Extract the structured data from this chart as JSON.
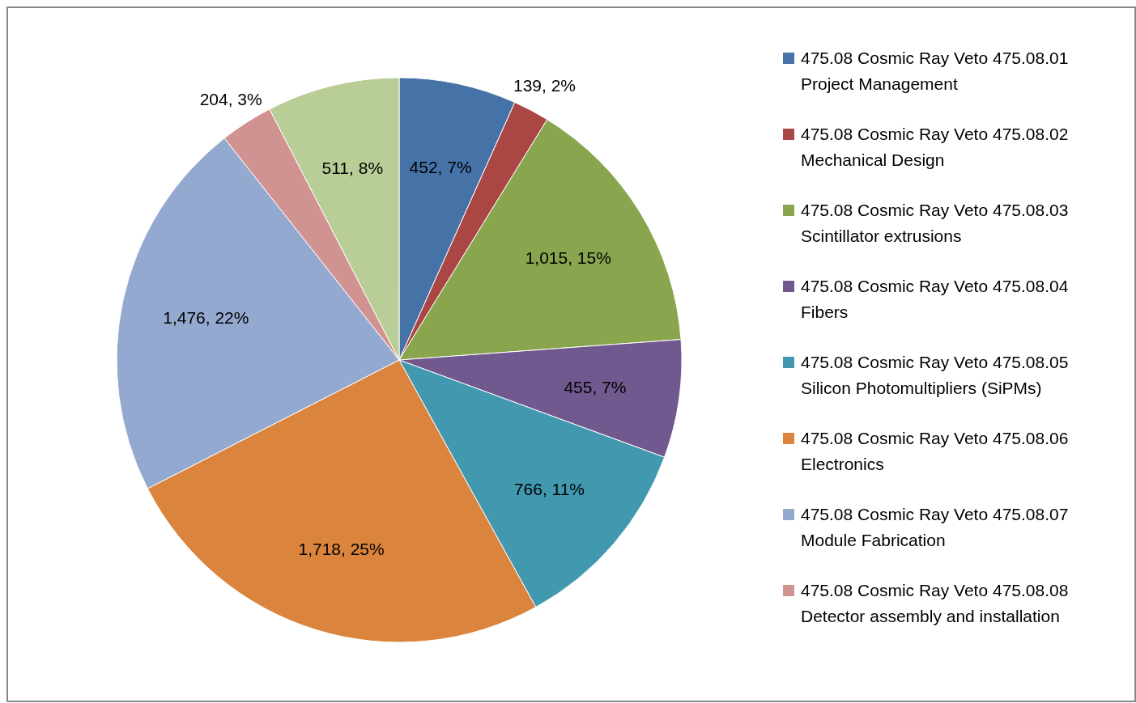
{
  "chart_data": {
    "type": "pie",
    "categories": [
      "475.08 Cosmic Ray Veto 475.08.01 Project Management",
      "475.08 Cosmic Ray Veto 475.08.02 Mechanical Design",
      "475.08 Cosmic Ray Veto 475.08.03 Scintillator extrusions",
      "475.08 Cosmic Ray Veto 475.08.04 Fibers",
      "475.08 Cosmic Ray Veto 475.08.05 Silicon Photomultipliers (SiPMs)",
      "475.08 Cosmic Ray Veto 475.08.06 Electronics",
      "475.08 Cosmic Ray Veto 475.08.07 Module Fabrication",
      "475.08 Cosmic Ray Veto 475.08.08 Detector assembly and installation",
      null
    ],
    "values": [
      452,
      139,
      1015,
      455,
      766,
      1718,
      1476,
      204,
      511
    ],
    "value_labels": [
      "452, 7%",
      "139, 2%",
      "1,015, 15%",
      "455, 7%",
      "766, 11%",
      "1,718, 25%",
      "1,476, 22%",
      "204, 3%",
      "511, 8%"
    ],
    "colors": [
      "#4572a7",
      "#aa4643",
      "#89a54e",
      "#71588f",
      "#4198af",
      "#db843d",
      "#93a9cf",
      "#d19392",
      "#b9cd96"
    ],
    "legend": "right"
  }
}
